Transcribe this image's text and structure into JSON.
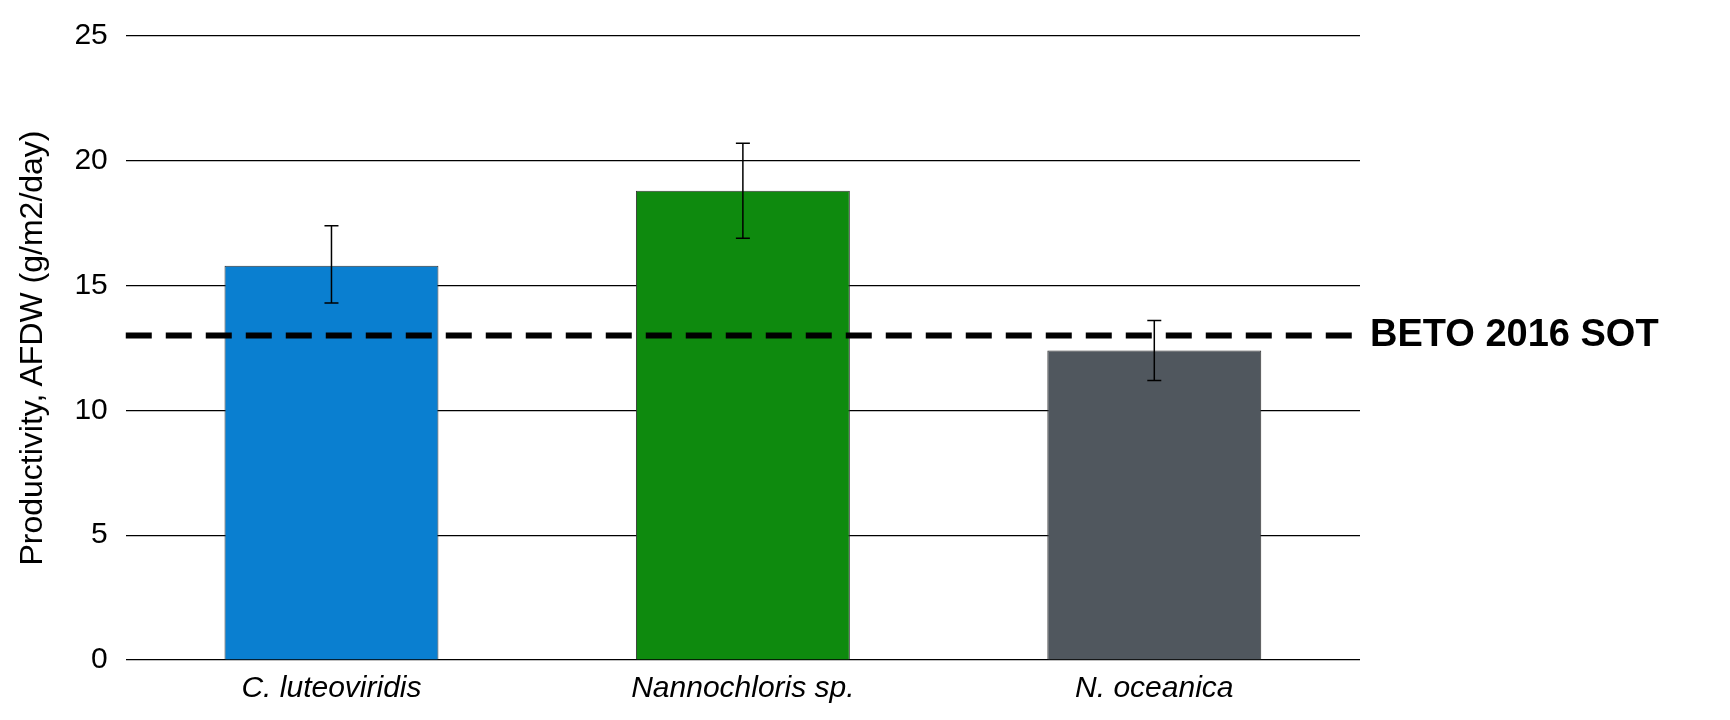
{
  "chart_data": {
    "type": "bar",
    "ylabel": "Productivity, AFDW (g/m2/day)",
    "categories": [
      "C. luteoviridis",
      "Nannochloris sp.",
      "N. oceanica"
    ],
    "values": [
      15.8,
      18.8,
      12.4
    ],
    "colors": [
      "#0a7fd0",
      "#0e8a0e",
      "#50575e"
    ],
    "errors": [
      [
        14.3,
        17.4
      ],
      [
        16.9,
        20.7
      ],
      [
        11.2,
        13.6
      ]
    ],
    "ylim": [
      0,
      25
    ],
    "yticks": [
      0,
      5,
      10,
      15,
      20,
      25
    ],
    "grid": "y",
    "legend": false,
    "ref_lines": [
      {
        "axis": "y",
        "value": 13,
        "label": "BETO 2016 SOT",
        "color": "#000000",
        "line_style": "dashed"
      }
    ]
  }
}
